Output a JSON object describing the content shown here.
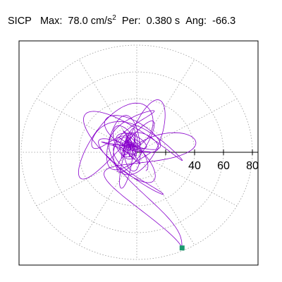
{
  "header": {
    "station": "SICP",
    "max_label": "Max:",
    "max_value": "78.0",
    "max_unit": "cm/s",
    "max_unit_exp": "2",
    "period_label": "Per:",
    "period_value": "0.380 s",
    "angle_label": "Ang:",
    "angle_value": "-66.3"
  },
  "chart_data": {
    "type": "polar-orbit",
    "title": "",
    "xlabel": "",
    "ylabel": "",
    "radial_ticks": [
      40,
      60,
      80
    ],
    "radial_tick_labels": [
      "40",
      "60",
      "80"
    ],
    "rings": [
      20,
      40,
      60,
      80
    ],
    "rmax": 84,
    "spokes_deg": [
      0,
      30,
      60,
      90,
      120,
      150,
      180,
      210,
      240,
      270,
      300,
      330
    ],
    "grid": true,
    "trace_color": "#8800cc",
    "marker_color": "#1a9a6e",
    "max_point": {
      "radius": 78.0,
      "angle_deg": -66.3
    }
  }
}
